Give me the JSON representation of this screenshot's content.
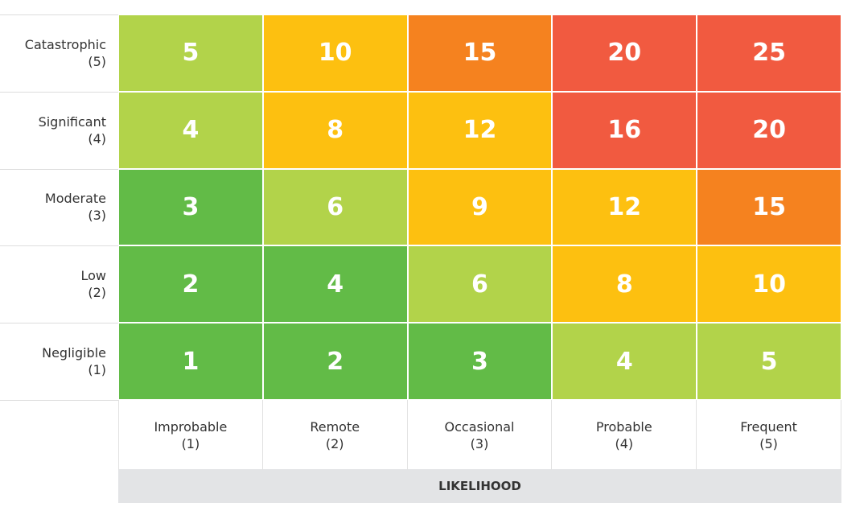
{
  "severity_rows": [
    {
      "label": "Catastrophic",
      "sub": "(5)",
      "cells": [
        {
          "value": 5,
          "color": "#b2d34a"
        },
        {
          "value": 10,
          "color": "#fdc010"
        },
        {
          "value": 15,
          "color": "#f5821f"
        },
        {
          "value": 20,
          "color": "#f15a40"
        },
        {
          "value": 25,
          "color": "#f15a40"
        }
      ]
    },
    {
      "label": "Significant",
      "sub": "(4)",
      "cells": [
        {
          "value": 4,
          "color": "#b2d34a"
        },
        {
          "value": 8,
          "color": "#fdc010"
        },
        {
          "value": 12,
          "color": "#fdc010"
        },
        {
          "value": 16,
          "color": "#f15a40"
        },
        {
          "value": 20,
          "color": "#f15a40"
        }
      ]
    },
    {
      "label": "Moderate",
      "sub": "(3)",
      "cells": [
        {
          "value": 3,
          "color": "#62bb47"
        },
        {
          "value": 6,
          "color": "#b2d34a"
        },
        {
          "value": 9,
          "color": "#fdc010"
        },
        {
          "value": 12,
          "color": "#fdc010"
        },
        {
          "value": 15,
          "color": "#f5821f"
        }
      ]
    },
    {
      "label": "Low",
      "sub": "(2)",
      "cells": [
        {
          "value": 2,
          "color": "#62bb47"
        },
        {
          "value": 4,
          "color": "#62bb47"
        },
        {
          "value": 6,
          "color": "#b2d34a"
        },
        {
          "value": 8,
          "color": "#fdc010"
        },
        {
          "value": 10,
          "color": "#fdc010"
        }
      ]
    },
    {
      "label": "Negligible",
      "sub": "(1)",
      "cells": [
        {
          "value": 1,
          "color": "#62bb47"
        },
        {
          "value": 2,
          "color": "#62bb47"
        },
        {
          "value": 3,
          "color": "#62bb47"
        },
        {
          "value": 4,
          "color": "#b2d34a"
        },
        {
          "value": 5,
          "color": "#b2d34a"
        }
      ]
    }
  ],
  "likelihood_columns": [
    {
      "label": "Improbable",
      "sub": "(1)"
    },
    {
      "label": "Remote",
      "sub": "(2)"
    },
    {
      "label": "Occasional",
      "sub": "(3)"
    },
    {
      "label": "Probable",
      "sub": "(4)"
    },
    {
      "label": "Frequent",
      "sub": "(5)"
    }
  ],
  "axis_title": "LIKELIHOOD"
}
